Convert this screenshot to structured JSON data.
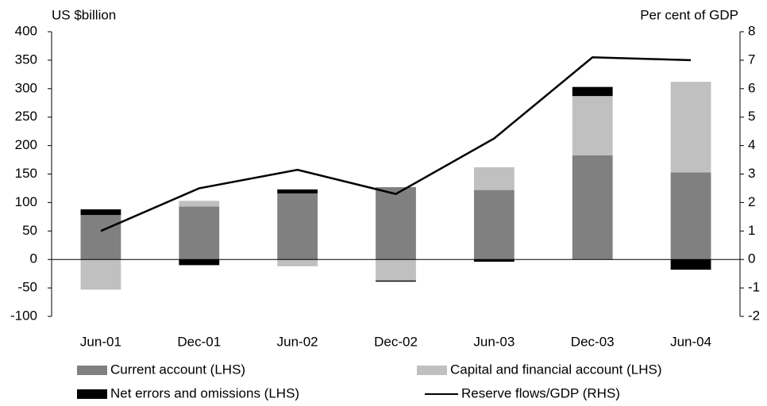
{
  "chart_data": {
    "type": "bar",
    "ylabel": "US $billion",
    "y2label": "Per cent of GDP",
    "categories": [
      "Jun-01",
      "Dec-01",
      "Jun-02",
      "Dec-02",
      "Jun-03",
      "Dec-03",
      "Jun-04"
    ],
    "series": [
      {
        "name": "Current account (LHS)",
        "color": "#808080",
        "values": [
          78,
          93,
          116,
          127,
          122,
          183,
          153
        ]
      },
      {
        "name": "Capital and financial account (LHS)",
        "color": "#c0c0c0",
        "values": [
          -53,
          10,
          -12,
          -37,
          40,
          104,
          159
        ]
      },
      {
        "name": "Net errors and omissions (LHS)",
        "color": "#000000",
        "values": [
          10,
          -10,
          7,
          -2,
          -4,
          16,
          -18
        ]
      },
      {
        "name": "Reserve flows/GDP (RHS)",
        "color": "#000000",
        "type": "line",
        "axis": "y2",
        "values": [
          1.0,
          2.5,
          3.15,
          2.3,
          4.25,
          7.1,
          7.0
        ]
      }
    ],
    "ylim": [
      -100,
      400
    ],
    "yticks": [
      -100,
      -50,
      0,
      50,
      100,
      150,
      200,
      250,
      300,
      350,
      400
    ],
    "y2lim": [
      -2,
      8
    ],
    "y2ticks": [
      -2,
      -1,
      0,
      1,
      2,
      3,
      4,
      5,
      6,
      7,
      8
    ]
  }
}
